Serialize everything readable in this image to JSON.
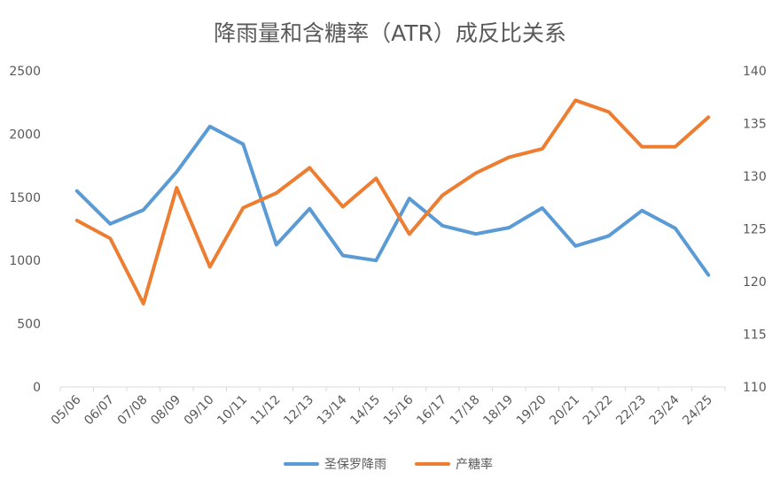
{
  "chart_data": {
    "type": "line",
    "title": "降雨量和含糖率（ATR）成反比关系",
    "categories": [
      "05/06",
      "06/07",
      "07/08",
      "08/09",
      "09/10",
      "10/11",
      "11/12",
      "12/13",
      "13/14",
      "14/15",
      "15/16",
      "16/17",
      "17/18",
      "18/19",
      "19/20",
      "20/21",
      "21/22",
      "22/23",
      "23/24",
      "24/25"
    ],
    "series": [
      {
        "name": "圣保罗降雨",
        "axis": "left",
        "color": "#5b9bd5",
        "values": [
          1550,
          1290,
          1400,
          1700,
          2060,
          1920,
          1125,
          1410,
          1040,
          1000,
          1490,
          1275,
          1210,
          1260,
          1415,
          1115,
          1195,
          1395,
          1255,
          885
        ]
      },
      {
        "name": "产糖率",
        "axis": "right",
        "color": "#ed7d31",
        "values": [
          125.8,
          124.1,
          117.9,
          128.9,
          121.4,
          127.0,
          128.4,
          130.8,
          127.1,
          129.8,
          124.5,
          128.2,
          130.3,
          131.8,
          132.6,
          137.2,
          136.1,
          132.8,
          132.8,
          135.6
        ]
      }
    ],
    "y_left": {
      "ylim": [
        0,
        2500
      ],
      "ticks": [
        "0",
        "500",
        "1000",
        "1500",
        "2000",
        "2500"
      ]
    },
    "y_right": {
      "ylim": [
        110,
        140
      ],
      "ticks": [
        "110",
        "115",
        "120",
        "125",
        "130",
        "135",
        "140"
      ]
    },
    "legend_position": "bottom"
  }
}
